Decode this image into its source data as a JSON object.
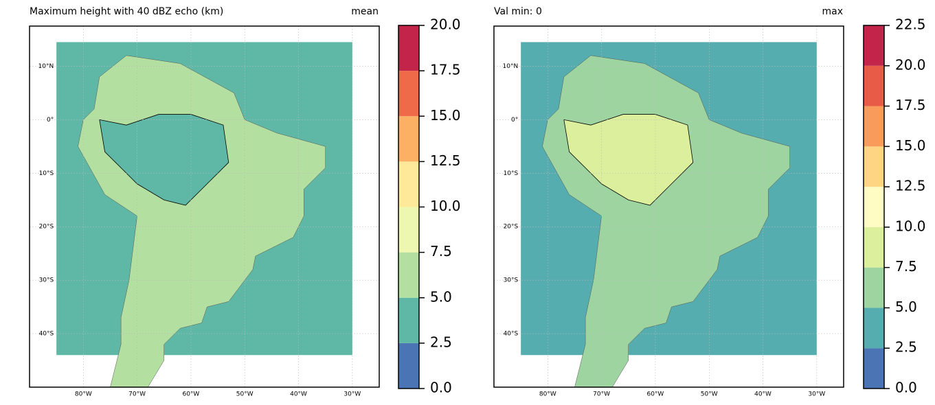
{
  "panels": [
    {
      "title": "Maximum height with 40 dBZ echo (km)",
      "stat": "mean",
      "xlim": [
        -90,
        -25
      ],
      "ylim": [
        -50,
        17.5
      ],
      "xticks": [
        {
          "value": -80,
          "label": "80°W"
        },
        {
          "value": -70,
          "label": "70°W"
        },
        {
          "value": -60,
          "label": "60°W"
        },
        {
          "value": -50,
          "label": "50°W"
        },
        {
          "value": -40,
          "label": "40°W"
        },
        {
          "value": -30,
          "label": "30°W"
        }
      ],
      "yticks": [
        {
          "value": 10,
          "label": "10°N"
        },
        {
          "value": 0,
          "label": "0°"
        },
        {
          "value": -10,
          "label": "10°S"
        },
        {
          "value": -20,
          "label": "20°S"
        },
        {
          "value": -30,
          "label": "30°S"
        },
        {
          "value": -40,
          "label": "40°S"
        }
      ],
      "colorbar": {
        "ticks": [
          {
            "value": 0,
            "label": "0.0"
          },
          {
            "value": 2.5,
            "label": "2.5"
          },
          {
            "value": 5,
            "label": "5.0"
          },
          {
            "value": 7.5,
            "label": "7.5"
          },
          {
            "value": 10,
            "label": "10.0"
          },
          {
            "value": 12.5,
            "label": "12.5"
          },
          {
            "value": 15,
            "label": "15.0"
          },
          {
            "value": 17.5,
            "label": "17.5"
          },
          {
            "value": 20,
            "label": "20.0"
          }
        ],
        "colors": [
          "#4a74b4",
          "#5fb8a6",
          "#b3dfa0",
          "#eef7b0",
          "#fee99a",
          "#fbb064",
          "#ef6a48",
          "#c2244a"
        ]
      }
    },
    {
      "title": "Val min: 0",
      "stat": "max",
      "xlim": [
        -90,
        -25
      ],
      "ylim": [
        -50,
        17.5
      ],
      "xticks": [
        {
          "value": -80,
          "label": "80°W"
        },
        {
          "value": -70,
          "label": "70°W"
        },
        {
          "value": -60,
          "label": "60°W"
        },
        {
          "value": -50,
          "label": "50°W"
        },
        {
          "value": -40,
          "label": "40°W"
        },
        {
          "value": -30,
          "label": "30°W"
        }
      ],
      "yticks": [
        {
          "value": 10,
          "label": "10°N"
        },
        {
          "value": 0,
          "label": "0°"
        },
        {
          "value": -10,
          "label": "10°S"
        },
        {
          "value": -20,
          "label": "20°S"
        },
        {
          "value": -30,
          "label": "30°S"
        },
        {
          "value": -40,
          "label": "40°S"
        }
      ],
      "colorbar": {
        "ticks": [
          {
            "value": 0,
            "label": "0.0"
          },
          {
            "value": 2.5,
            "label": "2.5"
          },
          {
            "value": 5,
            "label": "5.0"
          },
          {
            "value": 7.5,
            "label": "7.5"
          },
          {
            "value": 10,
            "label": "10.0"
          },
          {
            "value": 12.5,
            "label": "12.5"
          },
          {
            "value": 15,
            "label": "15.0"
          },
          {
            "value": 17.5,
            "label": "17.5"
          },
          {
            "value": 20,
            "label": "20.0"
          },
          {
            "value": 22.5,
            "label": "22.5"
          }
        ],
        "colors": [
          "#4a74b4",
          "#56adaf",
          "#9dd49f",
          "#dcef9c",
          "#fefcc2",
          "#fed582",
          "#f99b5a",
          "#e75b47",
          "#c2244a"
        ]
      }
    }
  ]
}
